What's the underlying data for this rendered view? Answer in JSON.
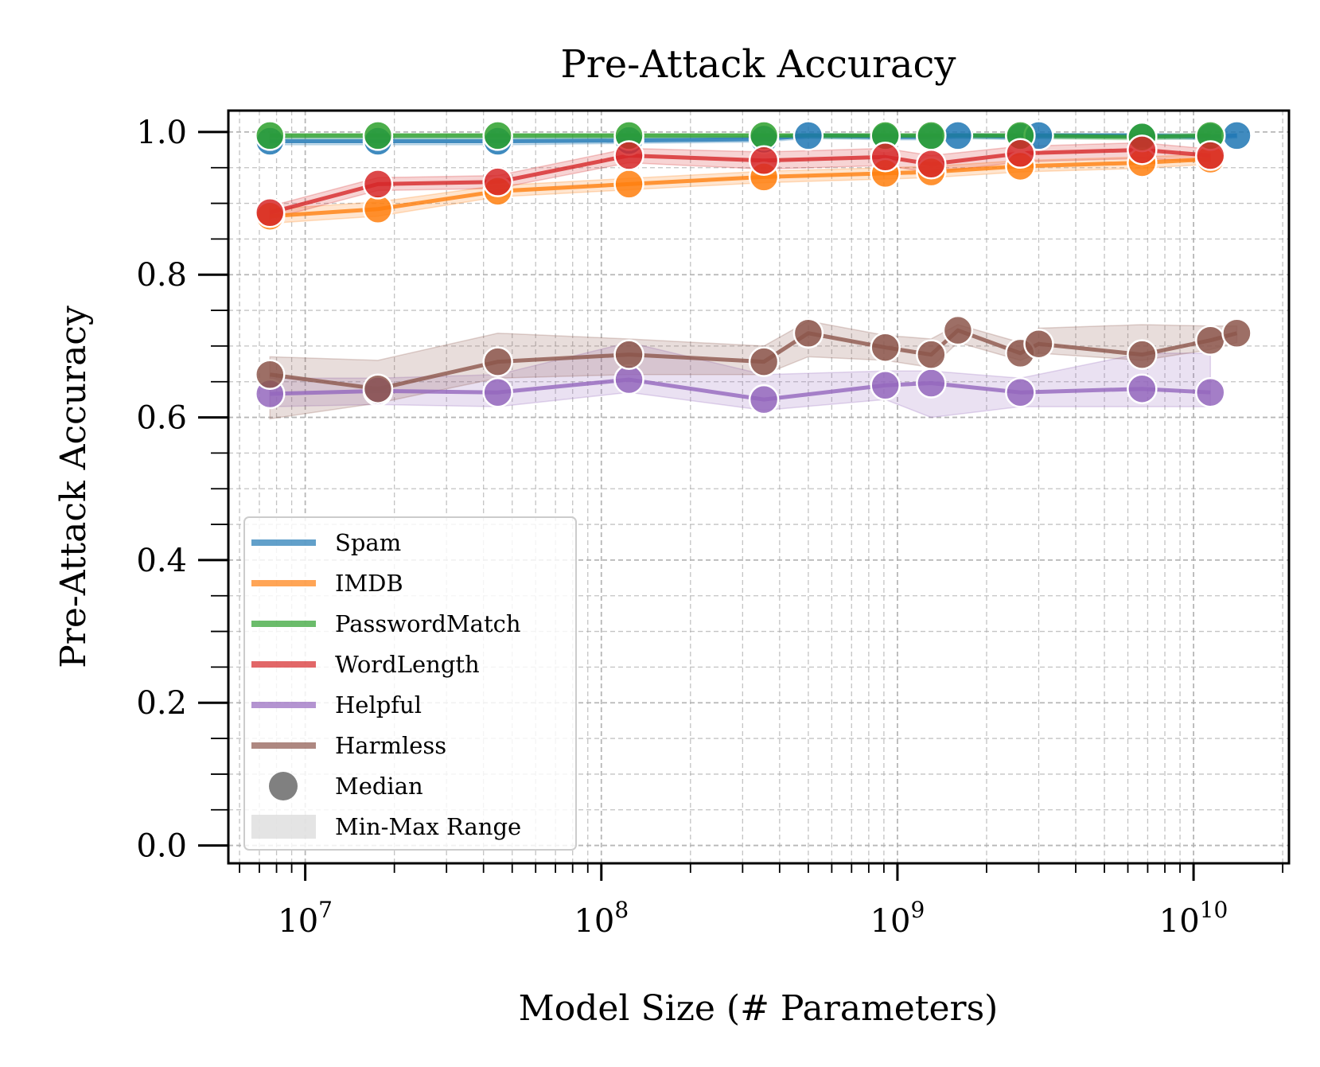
{
  "chart_data": {
    "type": "line",
    "title": "Pre-Attack Accuracy",
    "xlabel": "Model Size (# Parameters)",
    "ylabel": "Pre-Attack Accuracy",
    "xscale": "log",
    "xlim": [
      5500000,
      21000000000
    ],
    "ylim": [
      -0.025,
      1.03
    ],
    "yticks": [
      0.0,
      0.2,
      0.4,
      0.6,
      0.8,
      1.0
    ],
    "ytick_labels": [
      "0.0",
      "0.2",
      "0.4",
      "0.6",
      "0.8",
      "1.0"
    ],
    "xticks": [
      {
        "value": 10000000,
        "base": "10",
        "exp": "7"
      },
      {
        "value": 100000000,
        "base": "10",
        "exp": "8"
      },
      {
        "value": 1000000000,
        "base": "10",
        "exp": "9"
      },
      {
        "value": 10000000000,
        "base": "10",
        "exp": "10"
      }
    ],
    "grid": true,
    "legend_position": "lower-left",
    "series": [
      {
        "name": "Spam",
        "color": "#1f77b4",
        "x": [
          7600000,
          17600000,
          44700000,
          124000000,
          354000000,
          500000000,
          910000000,
          1300000000,
          1600000000,
          2600000000,
          3000000000,
          6700000000,
          11400000000,
          14000000000
        ],
        "median": [
          0.987,
          0.987,
          0.987,
          0.988,
          0.99,
          0.995,
          0.993,
          0.993,
          0.995,
          0.993,
          0.995,
          0.995,
          0.993,
          0.995
        ],
        "min": [
          0.982,
          0.982,
          0.982,
          0.984,
          0.986,
          0.991,
          0.989,
          0.989,
          0.991,
          0.989,
          0.991,
          0.991,
          0.989,
          0.991
        ],
        "max": [
          0.992,
          0.992,
          0.992,
          0.992,
          0.994,
          0.998,
          0.997,
          0.997,
          0.998,
          0.997,
          0.998,
          0.998,
          0.997,
          0.998
        ]
      },
      {
        "name": "IMDB",
        "color": "#ff7f0e",
        "x": [
          7600000,
          17600000,
          44700000,
          124000000,
          354000000,
          910000000,
          1300000000,
          2600000000,
          6700000000,
          11400000000
        ],
        "median": [
          0.882,
          0.892,
          0.917,
          0.927,
          0.937,
          0.942,
          0.944,
          0.952,
          0.957,
          0.962
        ],
        "min": [
          0.872,
          0.882,
          0.909,
          0.919,
          0.929,
          0.934,
          0.936,
          0.944,
          0.949,
          0.955
        ],
        "max": [
          0.892,
          0.902,
          0.925,
          0.935,
          0.945,
          0.95,
          0.952,
          0.96,
          0.965,
          0.969
        ]
      },
      {
        "name": "PasswordMatch",
        "color": "#2ca02c",
        "x": [
          7600000,
          17600000,
          44700000,
          124000000,
          354000000,
          910000000,
          1300000000,
          2600000000,
          6700000000,
          11400000000
        ],
        "median": [
          0.995,
          0.995,
          0.995,
          0.995,
          0.995,
          0.995,
          0.995,
          0.995,
          0.993,
          0.995
        ],
        "min": [
          0.991,
          0.991,
          0.991,
          0.991,
          0.991,
          0.991,
          0.991,
          0.991,
          0.989,
          0.991
        ],
        "max": [
          0.998,
          0.998,
          0.998,
          0.998,
          0.998,
          0.998,
          0.998,
          0.998,
          0.997,
          0.998
        ]
      },
      {
        "name": "WordLength",
        "color": "#d62728",
        "x": [
          7600000,
          17600000,
          44700000,
          124000000,
          354000000,
          910000000,
          1300000000,
          2600000000,
          6700000000,
          11400000000
        ],
        "median": [
          0.887,
          0.927,
          0.93,
          0.967,
          0.96,
          0.965,
          0.955,
          0.97,
          0.975,
          0.967
        ],
        "min": [
          0.878,
          0.918,
          0.921,
          0.957,
          0.948,
          0.953,
          0.943,
          0.958,
          0.963,
          0.958
        ],
        "max": [
          0.896,
          0.936,
          0.939,
          0.977,
          0.972,
          0.977,
          0.967,
          0.98,
          0.985,
          0.976
        ]
      },
      {
        "name": "Helpful",
        "color": "#9467bd",
        "x": [
          7600000,
          17600000,
          44700000,
          124000000,
          354000000,
          910000000,
          1300000000,
          2600000000,
          6700000000,
          11400000000
        ],
        "median": [
          0.633,
          0.637,
          0.635,
          0.653,
          0.625,
          0.645,
          0.648,
          0.635,
          0.64,
          0.635
        ],
        "min": [
          0.615,
          0.618,
          0.615,
          0.635,
          0.61,
          0.625,
          0.6,
          0.615,
          0.615,
          0.615
        ],
        "max": [
          0.655,
          0.655,
          0.66,
          0.705,
          0.66,
          0.665,
          0.665,
          0.655,
          0.69,
          0.69
        ]
      },
      {
        "name": "Harmless",
        "color": "#8c564b",
        "x": [
          7600000,
          17600000,
          44700000,
          124000000,
          354000000,
          500000000,
          910000000,
          1300000000,
          1600000000,
          2600000000,
          3000000000,
          6700000000,
          11400000000,
          14000000000
        ],
        "median": [
          0.66,
          0.64,
          0.678,
          0.688,
          0.678,
          0.718,
          0.698,
          0.688,
          0.722,
          0.69,
          0.703,
          0.688,
          0.708,
          0.718
        ],
        "min": [
          0.598,
          0.62,
          0.655,
          0.66,
          0.66,
          0.685,
          0.68,
          0.67,
          0.705,
          0.68,
          0.69,
          0.68,
          0.695,
          0.705
        ],
        "max": [
          0.685,
          0.68,
          0.718,
          0.71,
          0.7,
          0.735,
          0.715,
          0.71,
          0.73,
          0.705,
          0.725,
          0.73,
          0.728,
          0.728
        ]
      }
    ],
    "legend_entries": [
      "Spam",
      "IMDB",
      "PasswordMatch",
      "WordLength",
      "Helpful",
      "Harmless",
      "Median",
      "Min-Max Range"
    ],
    "legend_colors": {
      "median_marker": "#808080",
      "range_patch": "#d9d9d9"
    }
  }
}
